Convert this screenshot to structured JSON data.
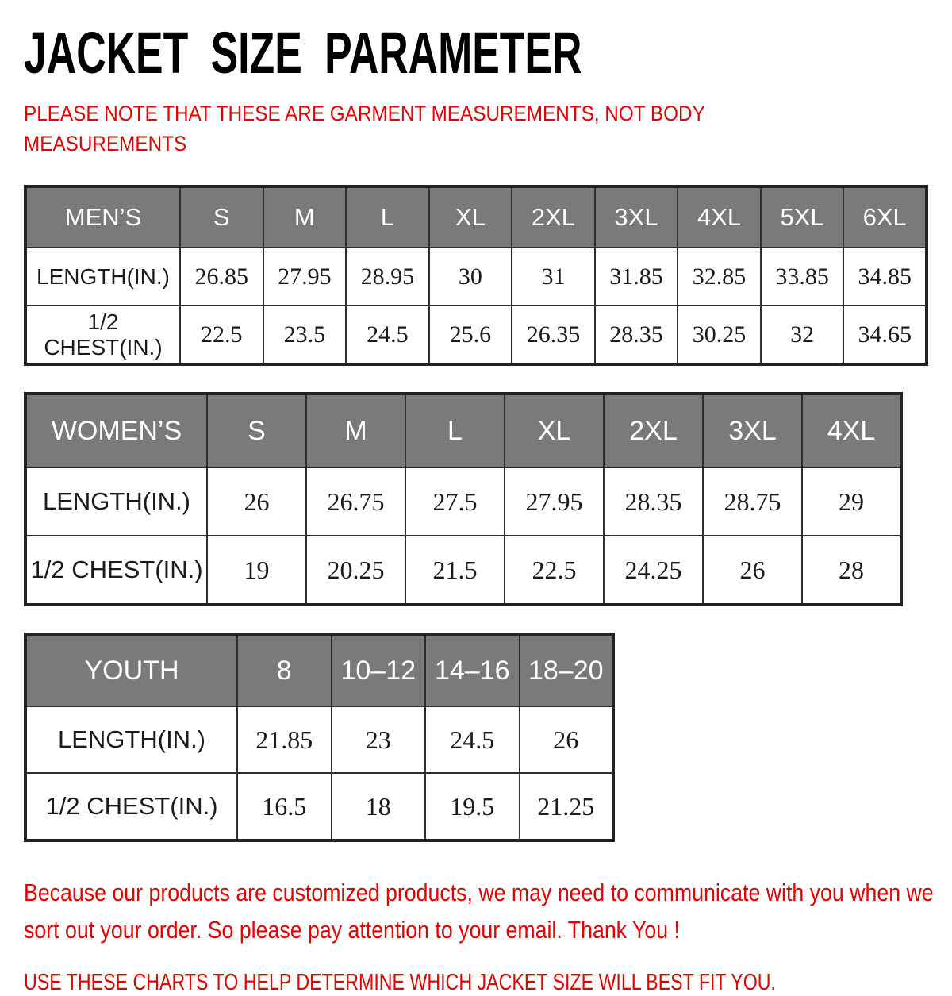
{
  "page": {
    "title": "JACKET SIZE PARAMETER",
    "note": "PLEASE NOTE THAT THESE ARE GARMENT MEASUREMENTS, NOT BODY MEASUREMENTS",
    "footer_paragraph": "Because our products are customized products, we may need to communicate with you when we sort out your order. So please pay attention to your email. Thank You !",
    "footer_line": "USE THESE CHARTS TO HELP DETERMINE WHICH JACKET SIZE WILL BEST FIT YOU."
  },
  "colors": {
    "accent_red": "#e60000",
    "header_gray": "#7a7a7a",
    "header_text": "#ffffff",
    "grid_border": "#2e2e2e",
    "title_black": "#000000",
    "cell_text": "#1b1b1b"
  },
  "tables": [
    {
      "id": "mens",
      "header": [
        "MEN’S",
        "S",
        "M",
        "L",
        "XL",
        "2XL",
        "3XL",
        "4XL",
        "5XL",
        "6XL"
      ],
      "rows": [
        [
          "LENGTH(IN.)",
          "26.85",
          "27.95",
          "28.95",
          "30",
          "31",
          "31.85",
          "32.85",
          "33.85",
          "34.85"
        ],
        [
          "1/2 CHEST(IN.)",
          "22.5",
          "23.5",
          "24.5",
          "25.6",
          "26.35",
          "28.35",
          "30.25",
          "32",
          "34.65"
        ]
      ]
    },
    {
      "id": "womens",
      "header": [
        "WOMEN’S",
        "S",
        "M",
        "L",
        "XL",
        "2XL",
        "3XL",
        "4XL"
      ],
      "rows": [
        [
          "LENGTH(IN.)",
          "26",
          "26.75",
          "27.5",
          "27.95",
          "28.35",
          "28.75",
          "29"
        ],
        [
          "1/2 CHEST(IN.)",
          "19",
          "20.25",
          "21.5",
          "22.5",
          "24.25",
          "26",
          "28"
        ]
      ]
    },
    {
      "id": "youth",
      "header": [
        "YOUTH",
        "8",
        "10–12",
        "14–16",
        "18–20"
      ],
      "rows": [
        [
          "LENGTH(IN.)",
          "21.85",
          "23",
          "24.5",
          "26"
        ],
        [
          "1/2 CHEST(IN.)",
          "16.5",
          "18",
          "19.5",
          "21.25"
        ]
      ]
    }
  ]
}
